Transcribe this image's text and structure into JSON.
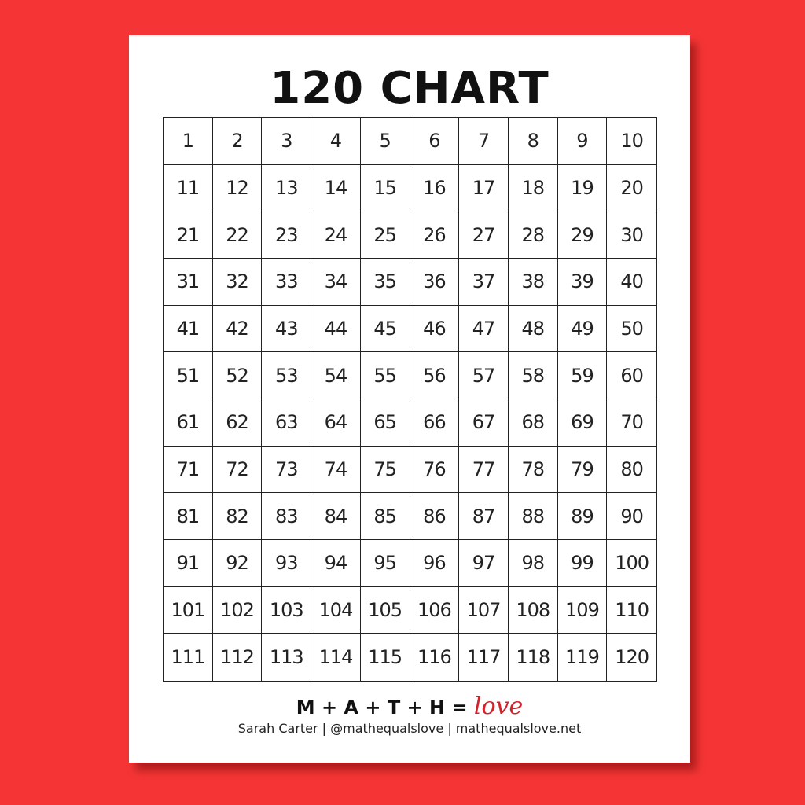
{
  "title": "120 CHART",
  "numbers": [
    1,
    2,
    3,
    4,
    5,
    6,
    7,
    8,
    9,
    10,
    11,
    12,
    13,
    14,
    15,
    16,
    17,
    18,
    19,
    20,
    21,
    22,
    23,
    24,
    25,
    26,
    27,
    28,
    29,
    30,
    31,
    32,
    33,
    34,
    35,
    36,
    37,
    38,
    39,
    40,
    41,
    42,
    43,
    44,
    45,
    46,
    47,
    48,
    49,
    50,
    51,
    52,
    53,
    54,
    55,
    56,
    57,
    58,
    59,
    60,
    61,
    62,
    63,
    64,
    65,
    66,
    67,
    68,
    69,
    70,
    71,
    72,
    73,
    74,
    75,
    76,
    77,
    78,
    79,
    80,
    81,
    82,
    83,
    84,
    85,
    86,
    87,
    88,
    89,
    90,
    91,
    92,
    93,
    94,
    95,
    96,
    97,
    98,
    99,
    100,
    101,
    102,
    103,
    104,
    105,
    106,
    107,
    108,
    109,
    110,
    111,
    112,
    113,
    114,
    115,
    116,
    117,
    118,
    119,
    120
  ],
  "footer": {
    "brand_text": "M + A + T + H = ",
    "brand_love": "love",
    "credit": "Sarah Carter | @mathequalslove | mathequalslove.net"
  },
  "colors": {
    "background": "#f53535",
    "love": "#d3222a"
  }
}
